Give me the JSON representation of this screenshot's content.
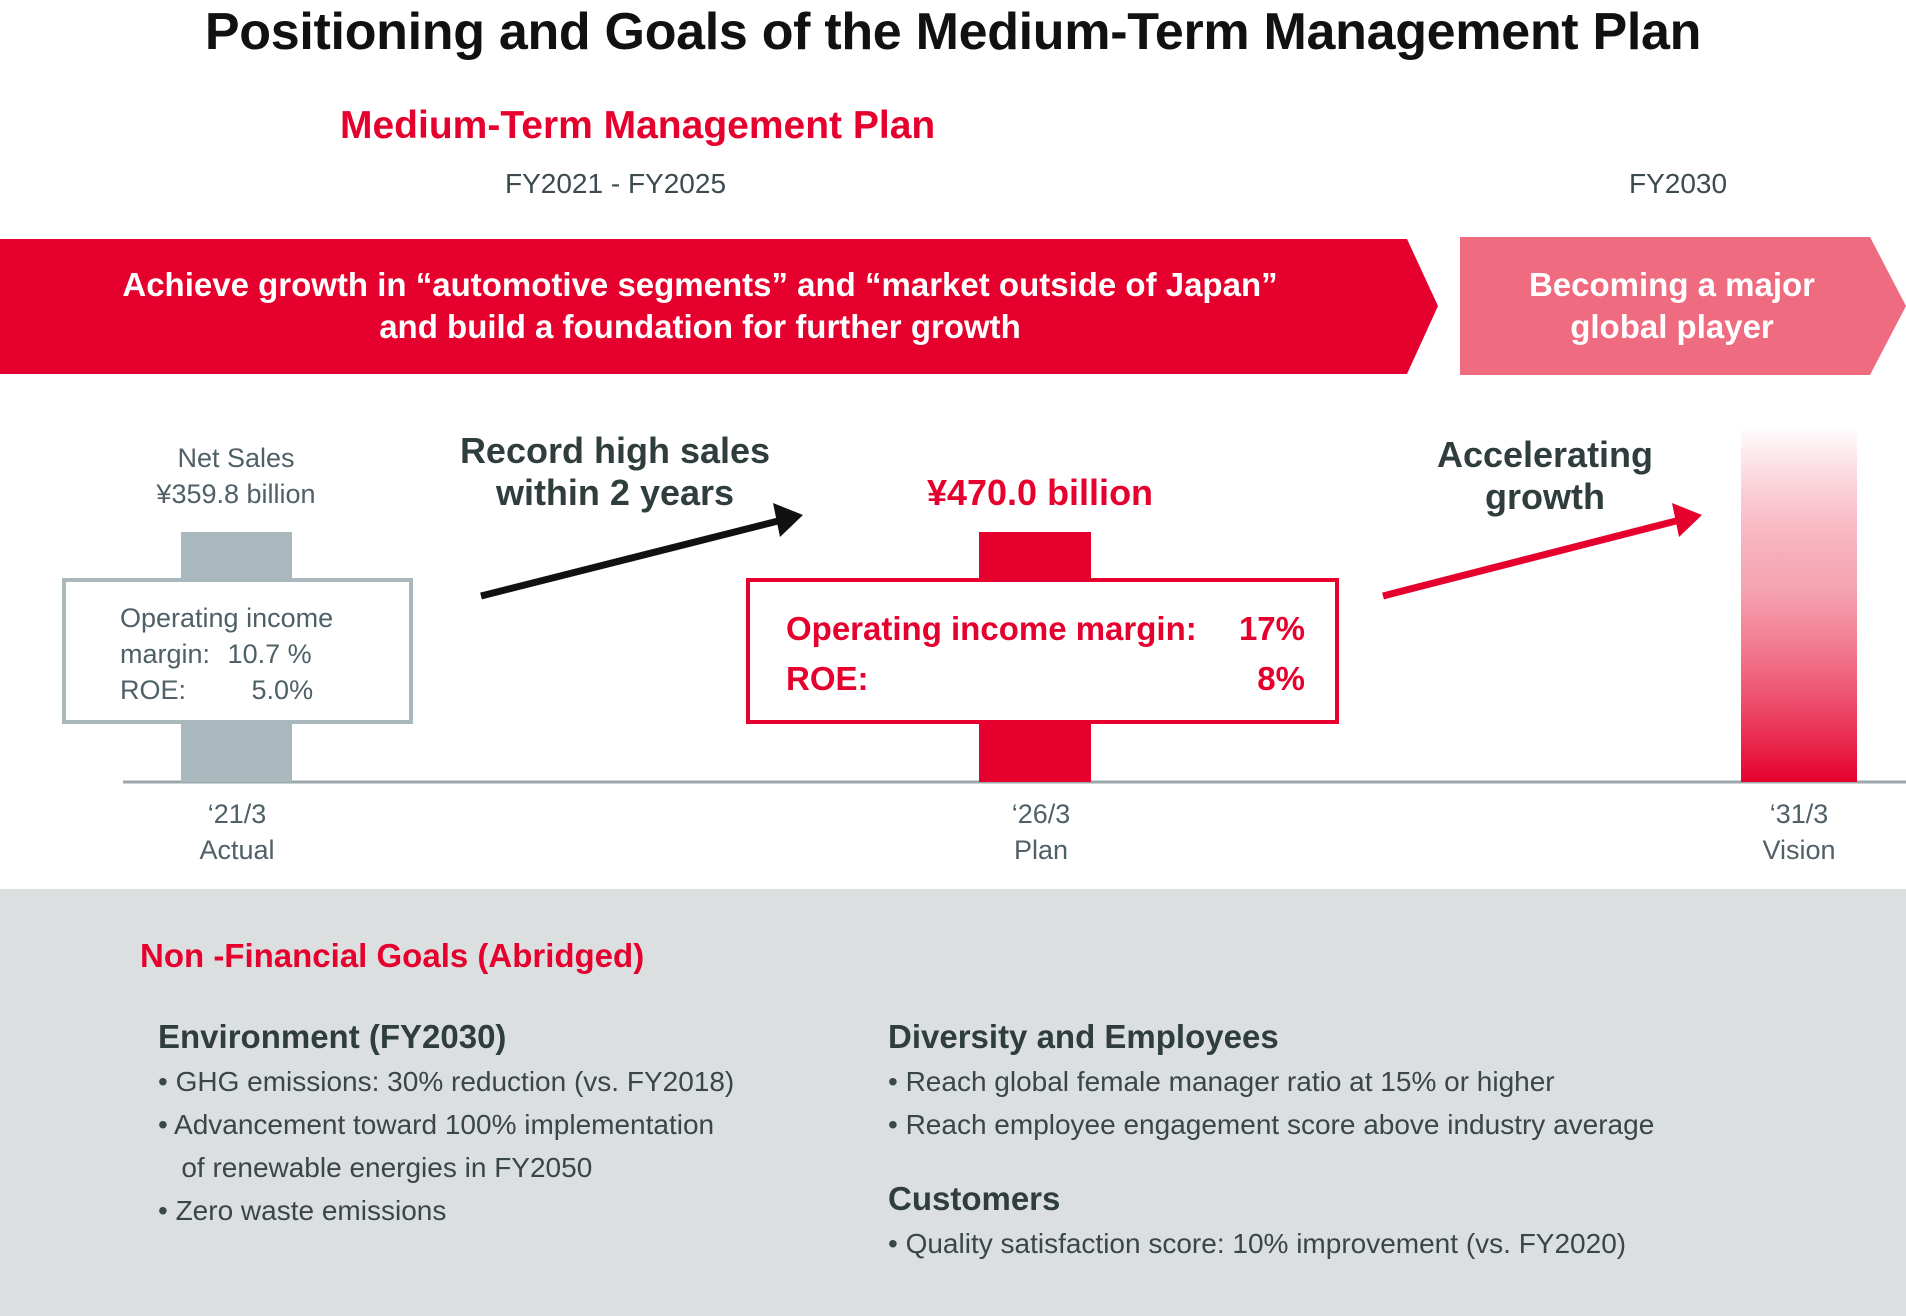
{
  "title": "Positioning and Goals of the Medium-Term Management Plan",
  "plan": {
    "label": "Medium-Term Management Plan",
    "period": "FY2021 - FY2025",
    "vision_period": "FY2030"
  },
  "banner_main": {
    "line1": "Achieve growth in “automotive segments” and “market outside of Japan”",
    "line2": "and build a foundation for further growth"
  },
  "banner_vision": {
    "line1": "Becoming a major",
    "line2": "global player"
  },
  "actual": {
    "net_sales_label": "Net Sales",
    "net_sales_value": "¥359.8 billion",
    "oi_label_1": "Operating income",
    "oi_label_2": "margin:",
    "oi_value": "10.7 %",
    "roe_label": "ROE:",
    "roe_value": "5.0%",
    "period": "‘21/3",
    "tag": "Actual"
  },
  "arrow1": {
    "line1": "Record high sales",
    "line2": "within 2 years"
  },
  "plan_target": {
    "sales_value": "¥470.0 billion",
    "oi_label": "Operating income margin:",
    "oi_value": "17%",
    "roe_label": "ROE:",
    "roe_value": "8%",
    "period": "‘26/3",
    "tag": "Plan"
  },
  "arrow2": {
    "line1": "Accelerating",
    "line2": "growth"
  },
  "vision": {
    "period": "‘31/3",
    "tag": "Vision"
  },
  "non_financial": {
    "title": "Non -Financial Goals (Abridged)",
    "environment": {
      "heading": "Environment (FY2030)",
      "items": [
        "• GHG emissions: 30% reduction (vs. FY2018)",
        "• Advancement toward 100% implementation",
        "   of renewable energies in FY2050",
        "• Zero waste emissions"
      ]
    },
    "diversity": {
      "heading": "Diversity and Employees",
      "items": [
        "• Reach global female manager ratio at 15% or higher",
        "• Reach employee engagement score above industry average"
      ]
    },
    "customers": {
      "heading": "Customers",
      "items": [
        "• Quality satisfaction score: 10% improvement (vs. FY2020)"
      ]
    }
  },
  "colors": {
    "brand_red": "#e5002d",
    "vision_pink": "#ee6b80",
    "actual_gray": "#a9b8bd",
    "panel_gray": "#dcdfe0"
  }
}
